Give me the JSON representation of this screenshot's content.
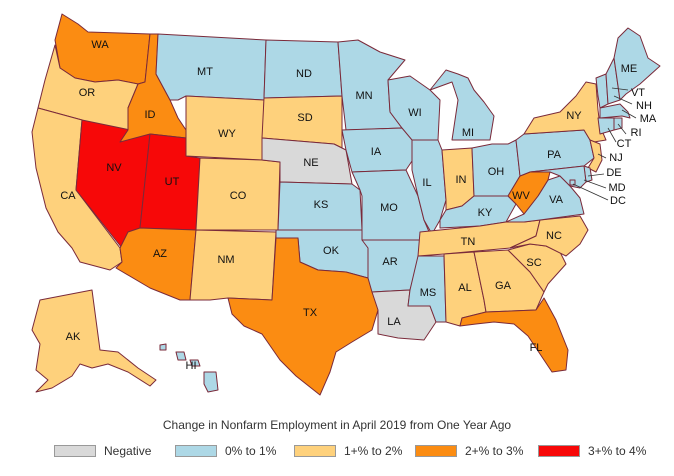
{
  "map": {
    "colors": {
      "negative": "#d9d9d9",
      "low": "#add8e6",
      "mid": "#fed17c",
      "high": "#fb8c12",
      "top": "#f70808",
      "border": "#7a2a3a"
    },
    "states": {
      "WA": {
        "label": "WA",
        "cat": "high"
      },
      "OR": {
        "label": "OR",
        "cat": "mid"
      },
      "CA": {
        "label": "CA",
        "cat": "mid"
      },
      "NV": {
        "label": "NV",
        "cat": "top"
      },
      "ID": {
        "label": "ID",
        "cat": "high"
      },
      "UT": {
        "label": "UT",
        "cat": "top"
      },
      "AZ": {
        "label": "AZ",
        "cat": "high"
      },
      "MT": {
        "label": "MT",
        "cat": "low"
      },
      "WY": {
        "label": "WY",
        "cat": "mid"
      },
      "CO": {
        "label": "CO",
        "cat": "mid"
      },
      "NM": {
        "label": "NM",
        "cat": "mid"
      },
      "ND": {
        "label": "ND",
        "cat": "low"
      },
      "SD": {
        "label": "SD",
        "cat": "mid"
      },
      "NE": {
        "label": "NE",
        "cat": "negative"
      },
      "KS": {
        "label": "KS",
        "cat": "low"
      },
      "OK": {
        "label": "OK",
        "cat": "low"
      },
      "TX": {
        "label": "TX",
        "cat": "high"
      },
      "MN": {
        "label": "MN",
        "cat": "low"
      },
      "IA": {
        "label": "IA",
        "cat": "low"
      },
      "MO": {
        "label": "MO",
        "cat": "low"
      },
      "AR": {
        "label": "AR",
        "cat": "low"
      },
      "LA": {
        "label": "LA",
        "cat": "negative"
      },
      "WI": {
        "label": "WI",
        "cat": "low"
      },
      "IL": {
        "label": "IL",
        "cat": "low"
      },
      "MS": {
        "label": "MS",
        "cat": "low"
      },
      "MI": {
        "label": "MI",
        "cat": "low"
      },
      "IN": {
        "label": "IN",
        "cat": "mid"
      },
      "OH": {
        "label": "OH",
        "cat": "low"
      },
      "KY": {
        "label": "KY",
        "cat": "low"
      },
      "TN": {
        "label": "TN",
        "cat": "mid"
      },
      "AL": {
        "label": "AL",
        "cat": "mid"
      },
      "GA": {
        "label": "GA",
        "cat": "mid"
      },
      "FL": {
        "label": "FL",
        "cat": "high"
      },
      "SC": {
        "label": "SC",
        "cat": "mid"
      },
      "NC": {
        "label": "NC",
        "cat": "mid"
      },
      "VA": {
        "label": "VA",
        "cat": "low"
      },
      "WV": {
        "label": "WV",
        "cat": "high"
      },
      "PA": {
        "label": "PA",
        "cat": "low"
      },
      "NY": {
        "label": "NY",
        "cat": "mid"
      },
      "ME": {
        "label": "ME",
        "cat": "low"
      },
      "VT": {
        "label": "VT",
        "cat": "low"
      },
      "NH": {
        "label": "NH",
        "cat": "low"
      },
      "MA": {
        "label": "MA",
        "cat": "low"
      },
      "RI": {
        "label": "RI",
        "cat": "low"
      },
      "CT": {
        "label": "CT",
        "cat": "low"
      },
      "NJ": {
        "label": "NJ",
        "cat": "mid"
      },
      "DE": {
        "label": "DE",
        "cat": "low"
      },
      "MD": {
        "label": "MD",
        "cat": "low"
      },
      "DC": {
        "label": "DC",
        "cat": "low"
      },
      "AK": {
        "label": "AK",
        "cat": "mid"
      },
      "HI": {
        "label": "HI",
        "cat": "low"
      }
    }
  },
  "caption": "Change in Nonfarm Employment in April 2019 from One Year Ago",
  "legend": [
    {
      "key": "negative",
      "label": "Negative"
    },
    {
      "key": "low",
      "label": "0% to 1%"
    },
    {
      "key": "mid",
      "label": "1+% to 2%"
    },
    {
      "key": "high",
      "label": "2+% to 3%"
    },
    {
      "key": "top",
      "label": "3+% to 4%"
    }
  ]
}
